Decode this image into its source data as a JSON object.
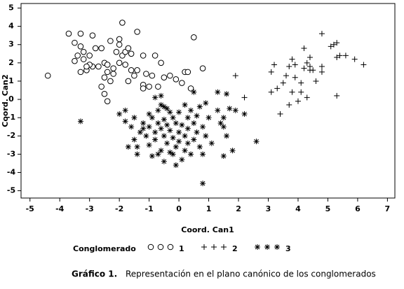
{
  "chart_data": {
    "type": "scatter",
    "xlabel": "Coord. Can1",
    "ylabel": "Coord. Can2",
    "legend_title": "Conglomerado",
    "caption": {
      "label": "Gráfico 1.",
      "text": "Representación en el plano canónico de los conglomerados"
    },
    "xlim": [
      -5.3,
      7.25
    ],
    "ylim": [
      -5.4,
      5.25
    ],
    "xticks": [
      -5,
      -4,
      -3,
      -2,
      -1,
      0,
      1,
      2,
      3,
      4,
      5,
      6,
      7
    ],
    "yticks": [
      -5,
      -4,
      -3,
      -2,
      -1,
      0,
      1,
      2,
      3,
      4,
      5
    ],
    "series": [
      {
        "name": "1",
        "marker": "circle",
        "color": "#000000",
        "x": [
          -4.4,
          -3.7,
          -3.3,
          -2.9,
          -3.5,
          -3.3,
          -3.2,
          -3.4,
          -3.2,
          -3.5,
          -3.0,
          -2.6,
          -2.3,
          -1.9,
          -1.4,
          -2.7,
          -2.9,
          -3.1,
          -3.3,
          -3.0,
          -2.5,
          -2.4,
          -2.2,
          -2.4,
          -2.5,
          -2.6,
          -2.5,
          -2.4,
          -2.3,
          -2.2,
          -2.0,
          -1.9,
          -1.8,
          -1.7,
          -2.0,
          -1.6,
          -2.1,
          -1.8,
          -1.6,
          -1.4,
          -1.5,
          -1.7,
          -1.2,
          -0.8,
          -0.6,
          -1.1,
          -0.9,
          -0.5,
          -1.2,
          -1.2,
          -1.0,
          -0.3,
          -0.1,
          0.2,
          0.3,
          0.1,
          0.4,
          0.8,
          0.5,
          -0.7,
          -2.8,
          -3.1,
          -2.0
        ],
        "values": [
          1.3,
          3.6,
          3.6,
          3.5,
          3.1,
          2.9,
          2.6,
          2.4,
          2.2,
          2.1,
          2.4,
          2.8,
          3.2,
          4.2,
          3.7,
          1.8,
          1.8,
          1.6,
          1.5,
          1.9,
          2.0,
          1.9,
          1.7,
          1.5,
          1.2,
          0.7,
          0.3,
          -0.1,
          1.0,
          1.4,
          2.0,
          2.4,
          2.6,
          2.8,
          3.0,
          2.5,
          2.6,
          1.9,
          1.6,
          1.6,
          1.3,
          1.0,
          2.4,
          2.4,
          2.0,
          1.4,
          1.3,
          1.2,
          0.8,
          0.6,
          0.7,
          1.3,
          1.1,
          1.5,
          1.5,
          0.9,
          0.6,
          1.7,
          3.4,
          0.7,
          2.8,
          1.8,
          3.3
        ]
      },
      {
        "name": "2",
        "marker": "plus",
        "color": "#000000",
        "x": [
          1.9,
          2.2,
          3.1,
          3.2,
          3.1,
          3.3,
          3.4,
          3.5,
          3.6,
          3.8,
          3.7,
          3.9,
          3.8,
          3.7,
          3.9,
          4.0,
          4.2,
          4.1,
          4.2,
          4.3,
          4.4,
          4.4,
          4.4,
          4.5,
          4.6,
          4.8,
          4.8,
          4.8,
          5.1,
          5.2,
          5.3,
          5.3,
          5.3,
          5.4,
          5.6,
          5.9,
          6.2,
          4.3,
          4.1
        ],
        "values": [
          1.3,
          0.1,
          1.5,
          1.9,
          0.4,
          0.6,
          -0.8,
          0.9,
          1.3,
          2.2,
          1.8,
          1.9,
          0.4,
          -0.3,
          1.2,
          -0.1,
          2.8,
          0.4,
          1.7,
          0.1,
          2.3,
          1.8,
          1.6,
          1.6,
          1.0,
          1.8,
          1.5,
          3.6,
          2.9,
          3.0,
          3.1,
          2.3,
          0.2,
          2.4,
          2.4,
          2.2,
          1.9,
          2.0,
          0.9
        ]
      },
      {
        "name": "3",
        "marker": "asterisk",
        "color": "#000000",
        "x": [
          -3.3,
          -2.0,
          -1.8,
          -1.8,
          -1.6,
          -1.5,
          -1.5,
          -1.4,
          -1.4,
          -1.3,
          -1.2,
          -1.1,
          -1.0,
          -1.0,
          -1.0,
          -0.9,
          -0.9,
          -0.8,
          -0.8,
          -0.7,
          -0.7,
          -0.7,
          -0.6,
          -0.6,
          -0.6,
          -0.5,
          -0.5,
          -0.5,
          -0.5,
          -0.4,
          -0.4,
          -0.4,
          -0.3,
          -0.3,
          -0.3,
          -0.2,
          -0.2,
          -0.2,
          -0.1,
          -0.1,
          -0.1,
          0.0,
          0.0,
          0.0,
          0.1,
          0.1,
          0.2,
          0.2,
          0.2,
          0.3,
          0.3,
          0.3,
          0.4,
          0.4,
          0.5,
          0.5,
          0.6,
          0.6,
          0.7,
          0.7,
          0.8,
          0.8,
          0.8,
          0.9,
          0.9,
          1.0,
          1.1,
          1.3,
          1.3,
          1.4,
          1.5,
          1.5,
          1.5,
          1.6,
          1.6,
          1.7,
          1.8,
          1.9,
          2.2,
          2.6,
          -0.8,
          -0.6,
          0.5,
          -1.2,
          -1.7
        ],
        "values": [
          -1.2,
          -0.8,
          -0.6,
          -1.2,
          -1.5,
          -1.0,
          -2.2,
          -2.6,
          -3.0,
          -1.8,
          -1.3,
          -2.0,
          -0.8,
          -1.5,
          -2.5,
          -3.1,
          -1.0,
          -1.8,
          -2.2,
          -0.6,
          -1.3,
          -3.0,
          -0.3,
          -1.6,
          -2.8,
          -0.4,
          -1.1,
          -2.0,
          -3.4,
          -0.5,
          -1.4,
          -2.4,
          -0.7,
          -1.7,
          -2.9,
          -1.0,
          -2.1,
          -3.0,
          -1.3,
          -2.6,
          -3.6,
          -0.7,
          -1.8,
          -2.3,
          -3.3,
          -1.4,
          -0.3,
          -2.0,
          -2.8,
          -1.0,
          -1.6,
          -2.4,
          -0.6,
          -3.0,
          -1.3,
          -2.2,
          -0.9,
          -1.8,
          -0.4,
          -2.6,
          -1.5,
          -3.0,
          -4.6,
          -0.2,
          -2.0,
          -1.0,
          -2.4,
          0.4,
          -0.6,
          -1.3,
          -1.0,
          -1.5,
          -3.1,
          0.3,
          -2.0,
          -0.5,
          -2.8,
          -0.6,
          -0.8,
          -2.3,
          0.1,
          0.2,
          0.4,
          -1.6,
          -2.6
        ]
      }
    ]
  }
}
